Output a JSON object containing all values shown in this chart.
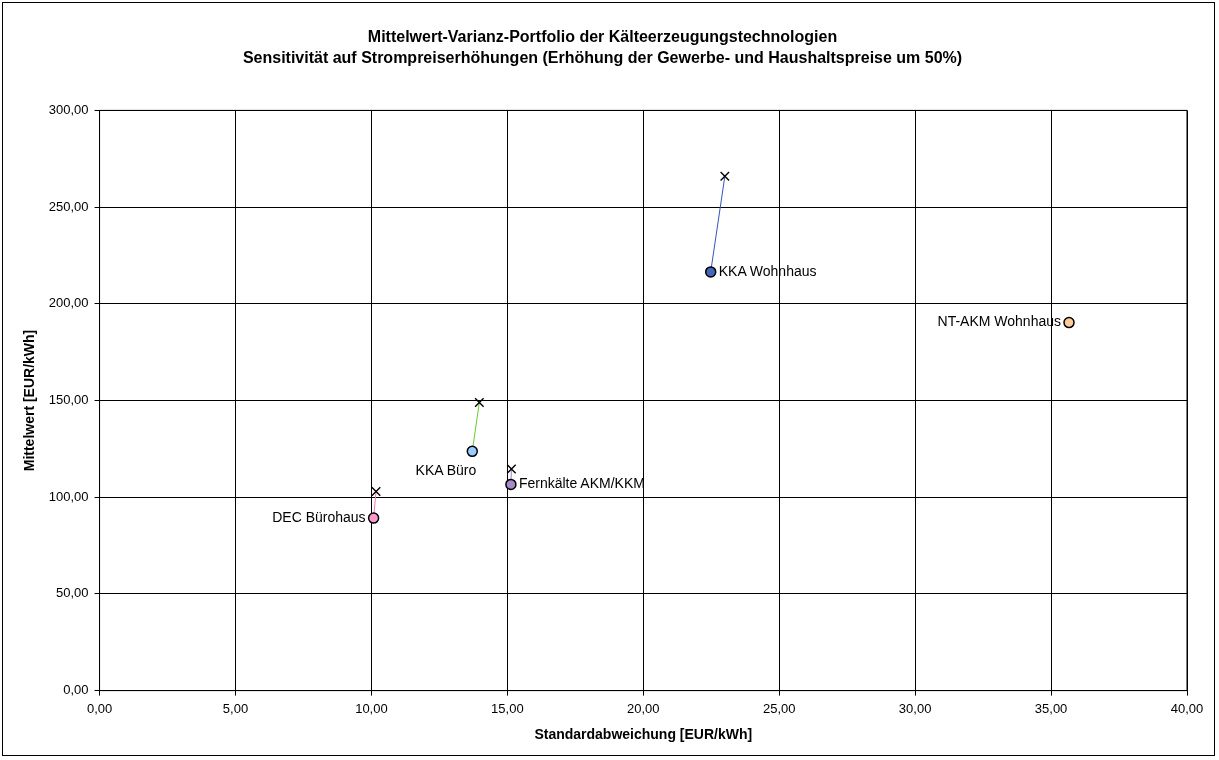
{
  "chart_data": {
    "type": "scatter",
    "title": "Mittelwert-Varianz-Portfolio der Kälteerzeugungstechnologien",
    "subtitle": "Sensitivität auf Strompreiserhöhungen (Erhöhung der Gewerbe- und Haushaltspreise um 50%)",
    "xlabel": "Standardabweichung [EUR/kWh]",
    "ylabel": "Mittelwert [EUR/kWh]",
    "series": [
      {
        "type": "line",
        "color": "#e87fb0",
        "x": [
          10.08,
          10.17
        ],
        "values": [
          89.2,
          102.9
        ],
        "marker": "none"
      },
      {
        "type": "line",
        "color": "#66cc33",
        "x": [
          13.71,
          13.97
        ],
        "values": [
          123.7,
          149.0
        ],
        "marker": "none"
      },
      {
        "type": "line",
        "color": "#a080c8",
        "x": [
          15.13,
          15.15
        ],
        "values": [
          106.6,
          114.6
        ],
        "marker": "none"
      },
      {
        "type": "line",
        "color": "#3355bb",
        "x": [
          22.48,
          23.0
        ],
        "values": [
          216.5,
          265.9
        ],
        "marker": "none"
      },
      {
        "type": "scatter",
        "marker": "circle",
        "x": [
          10.08,
          13.71,
          15.13,
          22.48,
          35.66
        ],
        "values": [
          89.2,
          123.7,
          106.6,
          216.5,
          190.3
        ],
        "colors": [
          "#ff99cc",
          "#99ccff",
          "#a68cc6",
          "#4466bb",
          "#ffcc99"
        ]
      },
      {
        "type": "scatter",
        "marker": "cross",
        "color": "#000000",
        "x": [
          10.17,
          13.97,
          15.15,
          23.0
        ],
        "values": [
          102.9,
          149.0,
          114.6,
          265.9
        ]
      }
    ],
    "annotations": [
      {
        "text": "DEC Bürohaus",
        "x": 10.08,
        "y": 89.2
      },
      {
        "text": "KKA Büro",
        "x": 13.71,
        "y": 123.7
      },
      {
        "text": "Fernkälte AKM/KKM",
        "x": 15.13,
        "y": 106.6
      },
      {
        "text": "KKA Wohnhaus",
        "x": 22.48,
        "y": 216.5
      },
      {
        "text": "NT-AKM Wohnhaus",
        "x": 35.66,
        "y": 190.3
      }
    ],
    "xlim": [
      0,
      40
    ],
    "xticks": [
      {
        "value": 0,
        "label": "0,00"
      },
      {
        "value": 5,
        "label": "5,00"
      },
      {
        "value": 10,
        "label": "10,00"
      },
      {
        "value": 15,
        "label": "15,00"
      },
      {
        "value": 20,
        "label": "20,00"
      },
      {
        "value": 25,
        "label": "25,00"
      },
      {
        "value": 30,
        "label": "30,00"
      },
      {
        "value": 35,
        "label": "35,00"
      },
      {
        "value": 40,
        "label": "40,00"
      }
    ],
    "ylim": [
      0,
      300
    ],
    "yticks": [
      {
        "value": 0,
        "label": "0,00"
      },
      {
        "value": 50,
        "label": "50,00"
      },
      {
        "value": 100,
        "label": "100,00"
      },
      {
        "value": 150,
        "label": "150,00"
      },
      {
        "value": 200,
        "label": "200,00"
      },
      {
        "value": 250,
        "label": "250,00"
      },
      {
        "value": 300,
        "label": "300,00"
      }
    ],
    "grid": true,
    "legend": false
  }
}
